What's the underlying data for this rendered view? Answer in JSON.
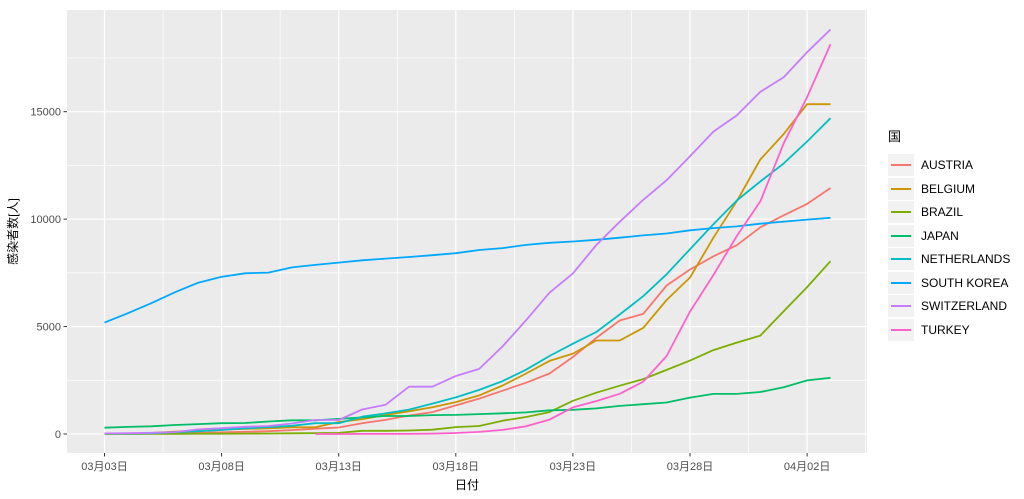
{
  "chart_data": {
    "type": "line",
    "title": "",
    "xlabel": "日付",
    "ylabel": "感染者数[人]",
    "legend_title": "国",
    "legend_position": "right",
    "grid": true,
    "background_color": "#FFFFFF",
    "panel_color": "#EBEBEB",
    "gridline_color": "#FFFFFF",
    "tick_label_color": "#4D4D4D",
    "x": [
      "03-03",
      "03-04",
      "03-05",
      "03-06",
      "03-07",
      "03-08",
      "03-09",
      "03-10",
      "03-11",
      "03-12",
      "03-13",
      "03-14",
      "03-15",
      "03-16",
      "03-17",
      "03-18",
      "03-19",
      "03-20",
      "03-21",
      "03-22",
      "03-23",
      "03-24",
      "03-25",
      "03-26",
      "03-27",
      "03-28",
      "03-29",
      "03-30",
      "03-31",
      "04-01",
      "04-02",
      "04-03"
    ],
    "x_tick_labels": [
      "03月03日",
      "03月08日",
      "03月13日",
      "03月18日",
      "03月23日",
      "03月28日",
      "04月02日"
    ],
    "x_tick_indices": [
      0,
      5,
      10,
      15,
      20,
      25,
      30
    ],
    "y_tick_labels": [
      "0",
      "5000",
      "10000",
      "15000"
    ],
    "y_ticks": [
      0,
      5000,
      10000,
      15000
    ],
    "y_minor_ticks": [
      2500,
      7500,
      12500,
      17500
    ],
    "ylim": [
      0,
      19700
    ],
    "series": [
      {
        "name": "AUSTRIA",
        "color": "#F8766D",
        "values": [
          18,
          21,
          29,
          41,
          55,
          79,
          104,
          131,
          182,
          246,
          302,
          504,
          655,
          860,
          1018,
          1332,
          1646,
          2013,
          2388,
          2814,
          3582,
          4474,
          5283,
          5588,
          6909,
          7657,
          8271,
          8788,
          9618,
          10180,
          10711,
          11450
        ]
      },
      {
        "name": "BELGIUM",
        "color": "#CD9600",
        "values": [
          13,
          23,
          50,
          109,
          169,
          200,
          239,
          267,
          314,
          314,
          559,
          689,
          886,
          1058,
          1243,
          1486,
          1795,
          2257,
          2815,
          3401,
          3743,
          4350,
          4350,
          4937,
          6235,
          7284,
          9134,
          10836,
          12775,
          13964,
          15348,
          15348
        ]
      },
      {
        "name": "BRAZIL",
        "color": "#7CAE00",
        "values": [
          2,
          2,
          4,
          4,
          13,
          13,
          20,
          25,
          31,
          38,
          52,
          151,
          151,
          162,
          200,
          321,
          372,
          621,
          793,
          1021,
          1546,
          1924,
          2247,
          2554,
          2985,
          3417,
          3904,
          4256,
          4579,
          5717,
          6836,
          8044
        ]
      },
      {
        "name": "JAPAN",
        "color": "#00BE67",
        "values": [
          293,
          331,
          360,
          420,
          461,
          502,
          511,
          581,
          639,
          639,
          701,
          773,
          839,
          839,
          878,
          889,
          924,
          963,
          1007,
          1101,
          1128,
          1193,
          1307,
          1387,
          1468,
          1693,
          1866,
          1866,
          1953,
          2178,
          2495,
          2617
        ]
      },
      {
        "name": "NETHERLANDS",
        "color": "#00BFC4",
        "values": [
          18,
          24,
          38,
          82,
          128,
          188,
          265,
          321,
          382,
          503,
          503,
          804,
          959,
          1135,
          1413,
          1705,
          2051,
          2460,
          2994,
          3631,
          4204,
          4749,
          5560,
          6412,
          7431,
          8603,
          9762,
          10866,
          11750,
          12595,
          13614,
          14697
        ]
      },
      {
        "name": "SOUTH KOREA",
        "color": "#00A9FF",
        "values": [
          5186,
          5621,
          6088,
          6593,
          7041,
          7314,
          7478,
          7513,
          7755,
          7869,
          7979,
          8086,
          8162,
          8236,
          8320,
          8413,
          8565,
          8652,
          8799,
          8897,
          8961,
          9037,
          9137,
          9241,
          9332,
          9478,
          9583,
          9661,
          9786,
          9887,
          9976,
          10062
        ]
      },
      {
        "name": "SWITZERLAND",
        "color": "#C77CFF",
        "values": [
          27,
          37,
          56,
          90,
          214,
          268,
          337,
          374,
          491,
          652,
          652,
          1139,
          1359,
          2200,
          2200,
          2700,
          3028,
          4075,
          5294,
          6575,
          7474,
          8795,
          9877,
          10897,
          11811,
          12928,
          14076,
          14829,
          15922,
          16605,
          17768,
          18827
        ]
      },
      {
        "name": "TURKEY",
        "color": "#FF61CC",
        "values": [
          null,
          null,
          null,
          null,
          null,
          null,
          null,
          null,
          null,
          1,
          1,
          5,
          5,
          6,
          18,
          47,
          98,
          192,
          359,
          670,
          1236,
          1529,
          1872,
          2433,
          3629,
          5698,
          7402,
          9217,
          10827,
          13531,
          15679,
          18135
        ]
      }
    ]
  }
}
